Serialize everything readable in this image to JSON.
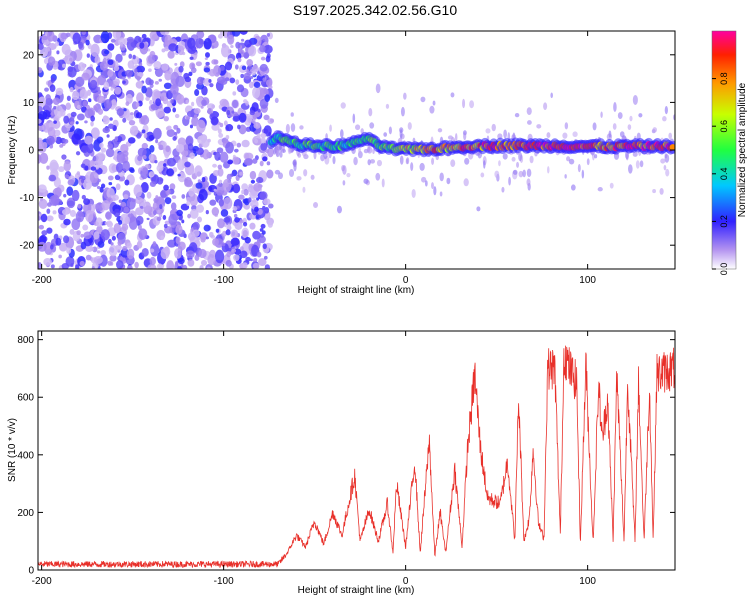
{
  "title": "S197.2025.342.02.56.G10",
  "chart_data": [
    {
      "type": "heatmap",
      "xlabel": "Height of straight line (km)",
      "ylabel": "Frequency (Hz)",
      "xlim": [
        -202,
        148
      ],
      "ylim": [
        -25,
        25
      ],
      "xticks": [
        -200,
        -100,
        0,
        100
      ],
      "yticks": [
        -20,
        -10,
        0,
        10,
        20
      ],
      "colorbar": {
        "label": "Normalized spectral amplitude",
        "range": [
          0,
          1
        ],
        "ticks": [
          "0.0",
          "0.2",
          "0.4",
          "0.6",
          "0.8"
        ]
      },
      "noise_region_x": [
        -202,
        -74
      ],
      "ridge": [
        {
          "x": -74,
          "f": 2.0,
          "a": 0.45
        },
        {
          "x": -69,
          "f": 2.8,
          "a": 0.5
        },
        {
          "x": -63,
          "f": 1.6,
          "a": 0.55
        },
        {
          "x": -56,
          "f": 1.0,
          "a": 0.5
        },
        {
          "x": -48,
          "f": 0.9,
          "a": 0.55
        },
        {
          "x": -40,
          "f": 0.7,
          "a": 0.5
        },
        {
          "x": -30,
          "f": 1.2,
          "a": 0.45
        },
        {
          "x": -22,
          "f": 2.5,
          "a": 0.5
        },
        {
          "x": -15,
          "f": 1.0,
          "a": 0.55
        },
        {
          "x": -8,
          "f": 0.3,
          "a": 0.6
        },
        {
          "x": 0,
          "f": 0.1,
          "a": 0.7
        },
        {
          "x": 10,
          "f": 0.2,
          "a": 0.8
        },
        {
          "x": 20,
          "f": 0.3,
          "a": 0.82
        },
        {
          "x": 35,
          "f": 0.8,
          "a": 0.85
        },
        {
          "x": 50,
          "f": 0.9,
          "a": 0.9
        },
        {
          "x": 65,
          "f": 0.9,
          "a": 0.88
        },
        {
          "x": 80,
          "f": 0.9,
          "a": 0.92
        },
        {
          "x": 95,
          "f": 0.8,
          "a": 0.9
        },
        {
          "x": 110,
          "f": 0.7,
          "a": 0.88
        },
        {
          "x": 125,
          "f": 0.8,
          "a": 0.9
        },
        {
          "x": 138,
          "f": 0.8,
          "a": 0.95
        },
        {
          "x": 148,
          "f": 0.8,
          "a": 0.95
        }
      ]
    },
    {
      "type": "line",
      "xlabel": "Height of straight line (km)",
      "ylabel": "SNR (10 * v/v)",
      "xlim": [
        -202,
        148
      ],
      "ylim": [
        0,
        830
      ],
      "xticks": [
        -200,
        -100,
        0,
        100
      ],
      "yticks": [
        0,
        200,
        400,
        600,
        800
      ],
      "color": "#e8302a",
      "series_envelope": [
        {
          "x": -202,
          "y": 20
        },
        {
          "x": -70,
          "y": 20
        },
        {
          "x": -65,
          "y": 60
        },
        {
          "x": -60,
          "y": 120
        },
        {
          "x": -55,
          "y": 80
        },
        {
          "x": -50,
          "y": 170
        },
        {
          "x": -45,
          "y": 90
        },
        {
          "x": -40,
          "y": 200
        },
        {
          "x": -35,
          "y": 120
        },
        {
          "x": -28,
          "y": 330
        },
        {
          "x": -25,
          "y": 100
        },
        {
          "x": -20,
          "y": 210
        },
        {
          "x": -15,
          "y": 100
        },
        {
          "x": -10,
          "y": 230
        },
        {
          "x": -7,
          "y": 60
        },
        {
          "x": -5,
          "y": 300
        },
        {
          "x": 0,
          "y": 80
        },
        {
          "x": 5,
          "y": 380
        },
        {
          "x": 8,
          "y": 60
        },
        {
          "x": 13,
          "y": 450
        },
        {
          "x": 16,
          "y": 50
        },
        {
          "x": 19,
          "y": 200
        },
        {
          "x": 22,
          "y": 60
        },
        {
          "x": 27,
          "y": 350
        },
        {
          "x": 31,
          "y": 80
        },
        {
          "x": 34,
          "y": 420
        },
        {
          "x": 38,
          "y": 680
        },
        {
          "x": 41,
          "y": 430
        },
        {
          "x": 45,
          "y": 250
        },
        {
          "x": 52,
          "y": 230
        },
        {
          "x": 56,
          "y": 380
        },
        {
          "x": 60,
          "y": 100
        },
        {
          "x": 62,
          "y": 600
        },
        {
          "x": 65,
          "y": 100
        },
        {
          "x": 68,
          "y": 180
        },
        {
          "x": 70,
          "y": 420
        },
        {
          "x": 73,
          "y": 160
        },
        {
          "x": 76,
          "y": 110
        },
        {
          "x": 78,
          "y": 700
        },
        {
          "x": 82,
          "y": 700
        },
        {
          "x": 85,
          "y": 120
        },
        {
          "x": 87,
          "y": 760
        },
        {
          "x": 90,
          "y": 700
        },
        {
          "x": 94,
          "y": 650
        },
        {
          "x": 96,
          "y": 90
        },
        {
          "x": 99,
          "y": 720
        },
        {
          "x": 103,
          "y": 90
        },
        {
          "x": 106,
          "y": 650
        },
        {
          "x": 108,
          "y": 450
        },
        {
          "x": 111,
          "y": 600
        },
        {
          "x": 114,
          "y": 100
        },
        {
          "x": 116,
          "y": 680
        },
        {
          "x": 120,
          "y": 100
        },
        {
          "x": 122,
          "y": 660
        },
        {
          "x": 126,
          "y": 100
        },
        {
          "x": 128,
          "y": 650
        },
        {
          "x": 131,
          "y": 100
        },
        {
          "x": 134,
          "y": 640
        },
        {
          "x": 136,
          "y": 100
        },
        {
          "x": 138,
          "y": 680
        },
        {
          "x": 143,
          "y": 690
        },
        {
          "x": 148,
          "y": 700
        }
      ]
    }
  ]
}
